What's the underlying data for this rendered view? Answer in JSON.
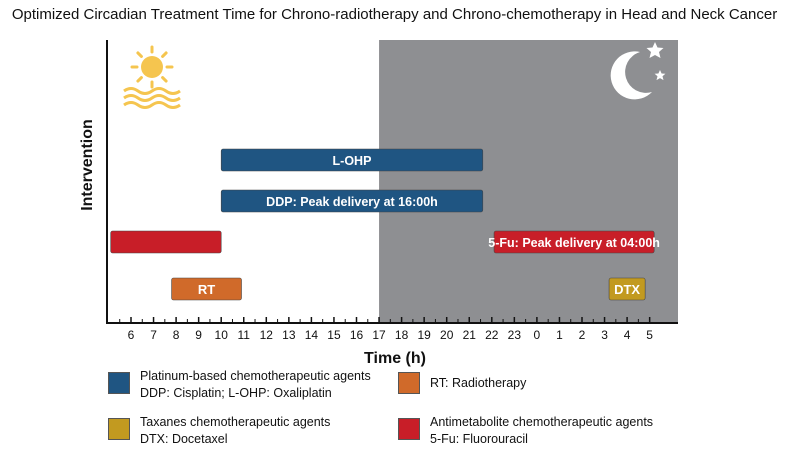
{
  "title": "Optimized Circadian Treatment Time for Chrono-radiotherapy and Chrono-chemotherapy in Head and Neck Cancer",
  "chart_data": {
    "type": "timeline",
    "xlabel": "Time (h)",
    "ylabel": "Intervention",
    "ticks": [
      "6",
      "7",
      "8",
      "9",
      "10",
      "11",
      "12",
      "13",
      "14",
      "15",
      "16",
      "17",
      "18",
      "19",
      "20",
      "21",
      "22",
      "23",
      "0",
      "1",
      "2",
      "3",
      "4",
      "5"
    ],
    "night_start": "17",
    "bars": [
      {
        "label": "L-OHP",
        "start": 10,
        "end": 21.6,
        "color": "#1f5582",
        "row": 0
      },
      {
        "label": "DDP: Peak delivery at 16:00h",
        "start": 10,
        "end": 21.6,
        "color": "#1f5582",
        "row": 1
      },
      {
        "label": "",
        "start": 5.1,
        "end": 10,
        "color": "#c81e28",
        "row": 2
      },
      {
        "label": "5-Fu: Peak delivery at 04:00h",
        "start": 22.1,
        "end": 29.2,
        "color": "#c81e28",
        "row": 2
      },
      {
        "label": "RT",
        "start": 7.8,
        "end": 10.9,
        "color": "#d06a2a",
        "row": 3
      },
      {
        "label": "DTX",
        "start": 27.2,
        "end": 28.8,
        "color": "#c29a20",
        "row": 3
      }
    ],
    "colors": {
      "night": "#8e8f92",
      "sun": "#f5c54f",
      "moon": "#ffffff",
      "axis": "#111111"
    }
  },
  "legend": [
    {
      "color": "#1f5582",
      "line1": "Platinum-based chemotherapeutic agents",
      "line2": "DDP: Cisplatin; L-OHP: Oxaliplatin"
    },
    {
      "color": "#d06a2a",
      "line1": "RT: Radiotherapy",
      "line2": ""
    },
    {
      "color": "#c29a20",
      "line1": "Taxanes chemotherapeutic agents",
      "line2": "DTX: Docetaxel"
    },
    {
      "color": "#c81e28",
      "line1": "Antimetabolite chemotherapeutic agents",
      "line2": "5-Fu: Fluorouracil"
    }
  ]
}
